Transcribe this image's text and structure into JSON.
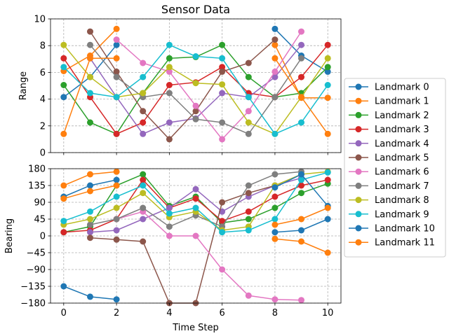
{
  "chart_data": [
    {
      "type": "line",
      "title": "Sensor Data",
      "xlabel": "",
      "ylabel": "Range",
      "xlim": [
        -0.5,
        10.5
      ],
      "ylim": [
        0,
        10
      ],
      "x_ticks": [
        "0",
        "2",
        "4",
        "6",
        "8",
        "10"
      ],
      "y_ticks": [
        "0",
        "2",
        "4",
        "6",
        "8",
        "10"
      ],
      "grid": true,
      "x": [
        0,
        1,
        2,
        3,
        4,
        5,
        6,
        7,
        8,
        9,
        10
      ],
      "series": [
        {
          "name": "Landmark 0",
          "color": "#1f77b4",
          "values": [
            4.15,
            5.65,
            8.05,
            null,
            null,
            null,
            null,
            null,
            9.25,
            7.25,
            6.05
          ]
        },
        {
          "name": "Landmark 1",
          "color": "#ff7f0e",
          "values": [
            6.1,
            7.25,
            9.25,
            null,
            null,
            null,
            null,
            null,
            8.05,
            4.1,
            4.1
          ]
        },
        {
          "name": "Landmark 2",
          "color": "#2ca02c",
          "values": [
            5.05,
            2.25,
            1.4,
            4.45,
            7.05,
            7.15,
            8.05,
            5.65,
            4.15,
            4.45,
            6.4
          ]
        },
        {
          "name": "Landmark 3",
          "color": "#d62728",
          "values": [
            7.05,
            4.15,
            1.4,
            2.25,
            5.05,
            5.25,
            6.4,
            4.45,
            4.15,
            5.65,
            8.05
          ]
        },
        {
          "name": "Landmark 4",
          "color": "#9467bd",
          "values": [
            null,
            7.05,
            4.15,
            1.4,
            2.25,
            2.55,
            4.45,
            4.15,
            5.65,
            8.05,
            null
          ]
        },
        {
          "name": "Landmark 5",
          "color": "#8c564b",
          "values": [
            null,
            9.05,
            6.05,
            3.1,
            1.0,
            3.1,
            6.05,
            6.7,
            8.45,
            null,
            null
          ]
        },
        {
          "name": "Landmark 6",
          "color": "#e377c2",
          "values": [
            null,
            null,
            8.45,
            6.7,
            6.05,
            3.5,
            1.0,
            3.1,
            6.05,
            9.05,
            null
          ]
        },
        {
          "name": "Landmark 7",
          "color": "#7f7f7f",
          "values": [
            null,
            8.05,
            5.65,
            4.15,
            4.45,
            2.5,
            2.25,
            1.4,
            4.15,
            7.05,
            null
          ]
        },
        {
          "name": "Landmark 8",
          "color": "#bcbd22",
          "values": [
            8.05,
            5.65,
            4.15,
            4.45,
            6.4,
            5.2,
            5.1,
            2.25,
            1.4,
            4.15,
            7.05
          ]
        },
        {
          "name": "Landmark 9",
          "color": "#17becf",
          "values": [
            6.4,
            4.45,
            4.15,
            5.65,
            8.05,
            7.2,
            7.05,
            4.15,
            1.4,
            2.25,
            5.05
          ]
        },
        {
          "name": "Landmark 10",
          "color": "#1f77b4",
          "values": [
            null,
            null,
            null,
            null,
            null,
            null,
            null,
            null,
            null,
            null,
            null
          ]
        },
        {
          "name": "Landmark 11",
          "color": "#ff7f0e",
          "values": [
            1.4,
            7.05,
            7.05,
            null,
            null,
            null,
            null,
            null,
            7.05,
            4.15,
            1.4
          ]
        }
      ]
    },
    {
      "type": "line",
      "title": "",
      "xlabel": "Time Step",
      "ylabel": "Bearing",
      "xlim": [
        -0.5,
        10.5
      ],
      "ylim": [
        -180,
        180
      ],
      "x_ticks": [
        "0",
        "2",
        "4",
        "6",
        "8",
        "10"
      ],
      "y_ticks": [
        "180",
        "135",
        "90",
        "45",
        "0",
        "−45",
        "−90",
        "−135",
        "−180"
      ],
      "grid": true,
      "x": [
        0,
        1,
        2,
        3,
        4,
        5,
        6,
        7,
        8,
        9,
        10
      ],
      "series": [
        {
          "name": "Landmark 0",
          "color": "#1f77b4",
          "values": [
            -135,
            -163,
            -170,
            null,
            null,
            null,
            null,
            null,
            10,
            15,
            45
          ]
        },
        {
          "name": "Landmark 1",
          "color": "#ff7f0e",
          "values": [
            135,
            165,
            172,
            null,
            null,
            null,
            null,
            null,
            -8,
            -15,
            -45
          ]
        },
        {
          "name": "Landmark 2",
          "color": "#2ca02c",
          "values": [
            10,
            25,
            135,
            165,
            80,
            105,
            35,
            45,
            75,
            115,
            140
          ]
        },
        {
          "name": "Landmark 3",
          "color": "#d62728",
          "values": [
            10,
            15,
            45,
            150,
            75,
            100,
            40,
            65,
            105,
            135,
            150
          ]
        },
        {
          "name": "Landmark 4",
          "color": "#9467bd",
          "values": [
            null,
            10,
            15,
            45,
            75,
            125,
            65,
            105,
            135,
            155,
            null
          ]
        },
        {
          "name": "Landmark 5",
          "color": "#8c564b",
          "values": [
            null,
            -5,
            -10,
            -15,
            -180,
            -180,
            90,
            115,
            135,
            null,
            null
          ]
        },
        {
          "name": "Landmark 6",
          "color": "#e377c2",
          "values": [
            null,
            null,
            45,
            65,
            0,
            0,
            -90,
            -160,
            -170,
            -172,
            null
          ]
        },
        {
          "name": "Landmark 7",
          "color": "#7f7f7f",
          "values": [
            null,
            30,
            45,
            75,
            25,
            55,
            25,
            135,
            165,
            172,
            null
          ]
        },
        {
          "name": "Landmark 8",
          "color": "#bcbd22",
          "values": [
            30,
            45,
            75,
            115,
            50,
            65,
            15,
            25,
            135,
            165,
            172
          ]
        },
        {
          "name": "Landmark 9",
          "color": "#17becf",
          "values": [
            40,
            65,
            105,
            135,
            60,
            75,
            10,
            15,
            45,
            150,
            170
          ]
        },
        {
          "name": "Landmark 10",
          "color": "#1f77b4",
          "values": [
            105,
            135,
            150,
            null,
            null,
            null,
            null,
            null,
            130,
            165,
            80
          ]
        },
        {
          "name": "Landmark 11",
          "color": "#ff7f0e",
          "values": [
            100,
            120,
            135,
            null,
            null,
            null,
            null,
            null,
            30,
            45,
            75
          ]
        }
      ]
    }
  ],
  "legend": {
    "placement": "right",
    "entries": [
      "Landmark 0",
      "Landmark 1",
      "Landmark 2",
      "Landmark 3",
      "Landmark 4",
      "Landmark 5",
      "Landmark 6",
      "Landmark 7",
      "Landmark 8",
      "Landmark 9",
      "Landmark 10",
      "Landmark 11"
    ]
  }
}
